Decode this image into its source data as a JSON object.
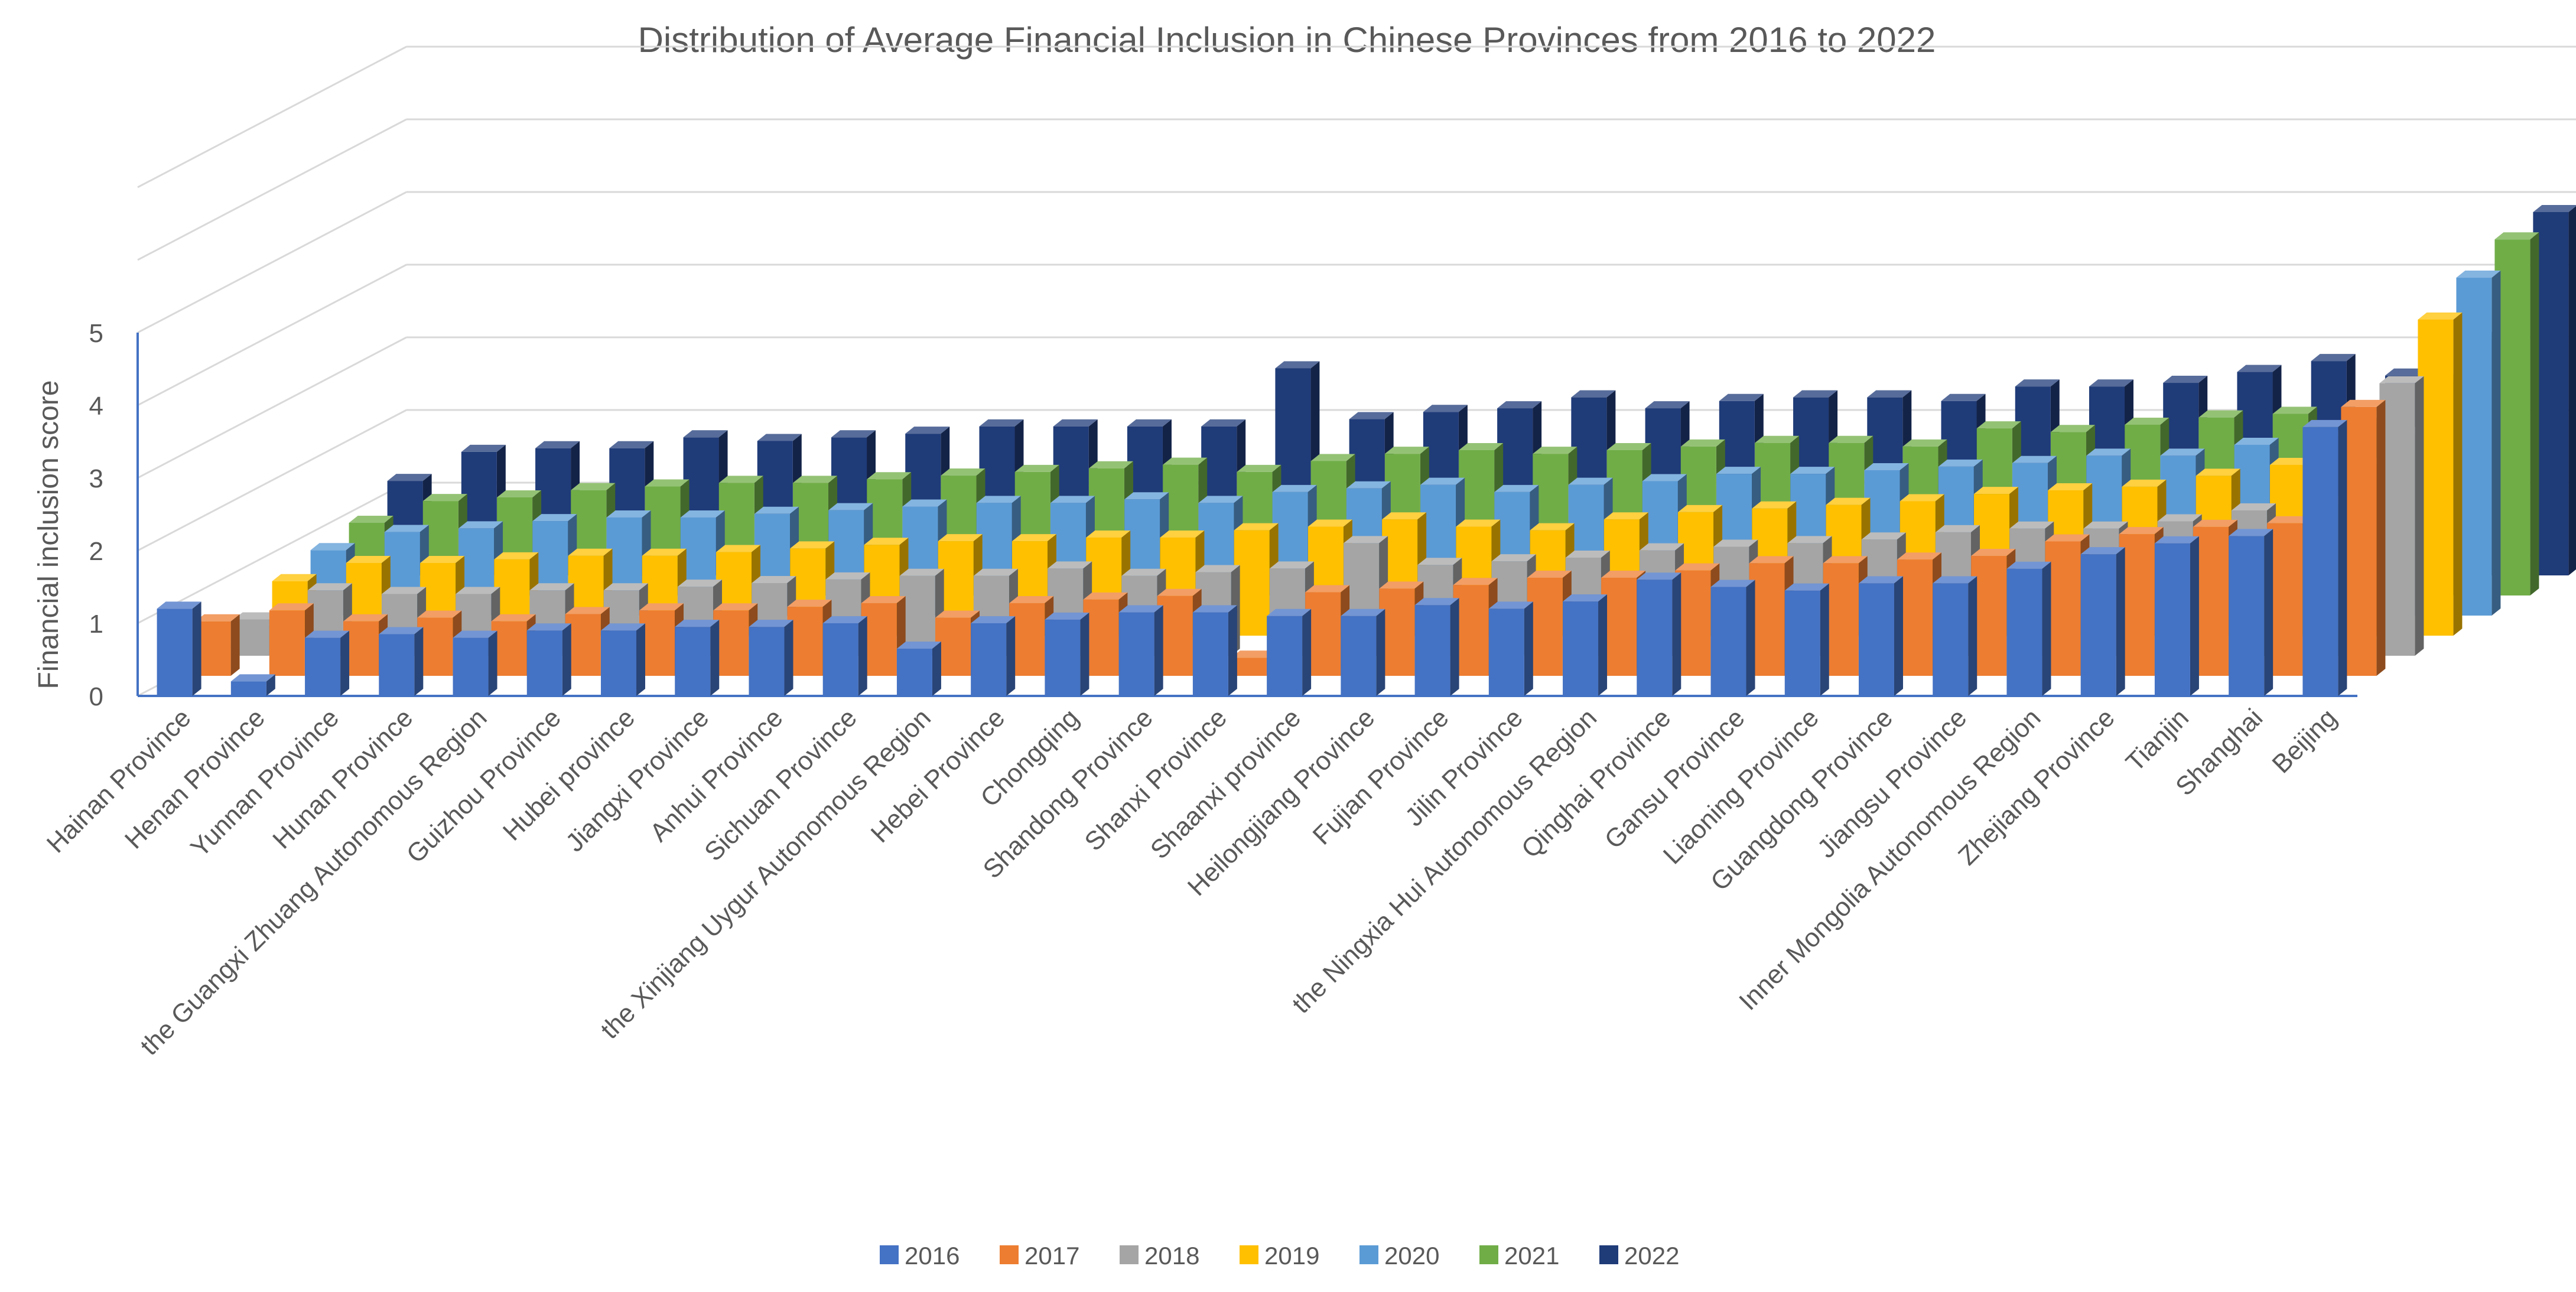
{
  "chart_data": {
    "type": "bar",
    "subtype": "3d-clustered-column",
    "title": "Distribution of Average Financial Inclusion in Chinese Provinces from 2016 to 2022",
    "ylabel": "Financial inclusion score",
    "xlabel": "",
    "ylim": [
      0,
      5
    ],
    "yticks": [
      0,
      1,
      2,
      3,
      4,
      5
    ],
    "gridlines": true,
    "legend_position": "bottom",
    "categories": [
      "Hainan Province",
      "Henan Province",
      "Yunnan Province",
      "Hunan Province",
      "the Guangxi Zhuang Autonomous Region",
      "Guizhou Province",
      "Hubei province",
      "Jiangxi Province",
      "Anhui Province",
      "Sichuan Province",
      "the Xinjiang Uygur Autonomous Region",
      "Hebei Province",
      "Chongqing",
      "Shandong Province",
      "Shanxi Province",
      "Shaanxi province",
      "Heilongjiang Province",
      "Fujian Province",
      "Jilin Province",
      "the Ningxia Hui Autonomous Region",
      "Qinghai Province",
      "Gansu Province",
      "Liaoning Province",
      "Guangdong Province",
      "Jiangsu Province",
      "Inner Mongolia Autonomous Region",
      "Zhejiang Province",
      "Tianjin",
      "Shanghai",
      "Beijing"
    ],
    "series": [
      {
        "name": "2016",
        "color": "#4472C4",
        "values": [
          1.2,
          0.2,
          0.8,
          0.85,
          0.8,
          0.9,
          0.9,
          0.95,
          0.95,
          1.0,
          0.65,
          1.0,
          1.05,
          1.15,
          1.15,
          1.1,
          1.1,
          1.25,
          1.2,
          1.3,
          1.6,
          1.5,
          1.45,
          1.55,
          1.55,
          1.75,
          1.95,
          2.1,
          2.2,
          3.7
        ]
      },
      {
        "name": "2017",
        "color": "#ED7D31",
        "values": [
          0.75,
          0.9,
          0.75,
          0.8,
          0.75,
          0.85,
          0.9,
          0.9,
          0.95,
          1.0,
          0.8,
          1.0,
          1.05,
          1.1,
          0.25,
          1.15,
          1.2,
          1.25,
          1.35,
          1.35,
          1.45,
          1.55,
          1.55,
          1.6,
          1.65,
          1.85,
          1.95,
          2.05,
          2.1,
          3.7
        ]
      },
      {
        "name": "2018",
        "color": "#A5A5A5",
        "values": [
          0.5,
          0.9,
          0.85,
          0.85,
          0.9,
          0.9,
          0.95,
          1.0,
          1.05,
          1.1,
          1.1,
          1.2,
          1.1,
          1.15,
          1.2,
          1.55,
          1.25,
          1.3,
          1.35,
          1.45,
          1.5,
          1.55,
          1.6,
          1.7,
          1.75,
          1.75,
          1.85,
          2.0,
          2.1,
          3.75
        ]
      },
      {
        "name": "2019",
        "color": "#FFC000",
        "values": [
          0.75,
          1.0,
          1.0,
          1.05,
          1.1,
          1.1,
          1.15,
          1.2,
          1.25,
          1.3,
          1.3,
          1.35,
          1.35,
          1.45,
          1.5,
          1.6,
          1.5,
          1.45,
          1.6,
          1.7,
          1.75,
          1.8,
          1.85,
          1.95,
          2.0,
          2.05,
          2.2,
          2.35,
          2.35,
          4.35
        ]
      },
      {
        "name": "2020",
        "color": "#5B9BD5",
        "values": [
          0.9,
          1.15,
          1.2,
          1.3,
          1.35,
          1.35,
          1.4,
          1.45,
          1.5,
          1.55,
          1.55,
          1.6,
          1.55,
          1.7,
          1.75,
          1.8,
          1.7,
          1.8,
          1.85,
          1.95,
          1.95,
          2.0,
          2.05,
          2.1,
          2.2,
          2.2,
          2.35,
          2.45,
          2.5,
          4.65
        ]
      },
      {
        "name": "2021",
        "color": "#70AD47",
        "values": [
          1.0,
          1.3,
          1.35,
          1.45,
          1.5,
          1.55,
          1.55,
          1.6,
          1.65,
          1.7,
          1.75,
          1.8,
          1.7,
          1.85,
          1.95,
          2.0,
          1.95,
          2.0,
          2.05,
          2.1,
          2.1,
          2.05,
          2.3,
          2.25,
          2.35,
          2.45,
          2.5,
          2.35,
          2.95,
          4.9
        ]
      },
      {
        "name": "2022",
        "color": "#1F3B78",
        "values": [
          1.3,
          1.7,
          1.75,
          1.75,
          1.9,
          1.85,
          1.9,
          1.95,
          2.05,
          2.05,
          2.05,
          2.05,
          2.85,
          2.15,
          2.25,
          2.3,
          2.45,
          2.3,
          2.4,
          2.45,
          2.45,
          2.4,
          2.6,
          2.6,
          2.65,
          2.8,
          2.95,
          2.75,
          3.25,
          5.0
        ]
      }
    ]
  }
}
